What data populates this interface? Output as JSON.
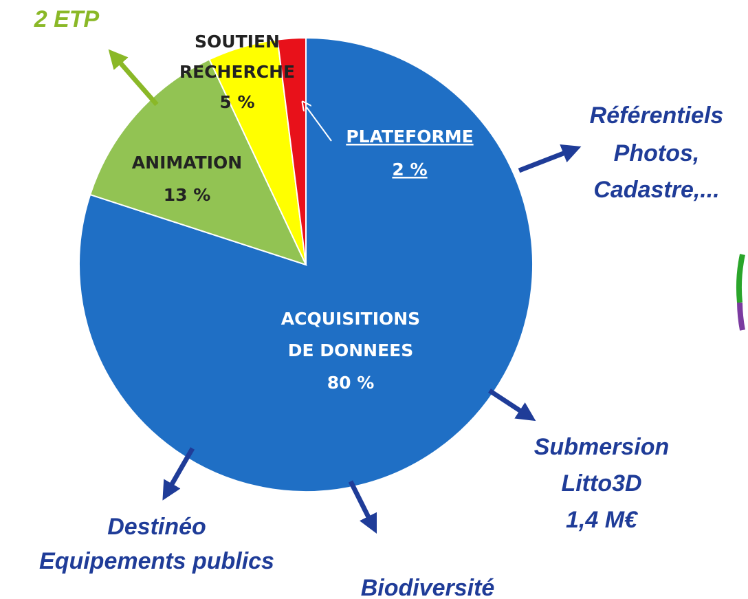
{
  "chart_data": {
    "type": "pie",
    "categories": [
      "ACQUISITIONS\nDE DONNEES",
      "ANIMATION",
      "SOUTIEN\nRECHERCHE",
      "PLATEFORME"
    ],
    "values": [
      80,
      13,
      5,
      2
    ],
    "value_labels": [
      "80 %",
      "13 %",
      "5 %",
      "2 %"
    ],
    "colors": [
      "#1f6fc5",
      "#92c353",
      "#ffff00",
      "#e8111a"
    ],
    "annotations": [
      "2 ETP",
      "Référentiels\nPhotos,\nCadastre,...",
      "Submersion\nLitto3D\n1,4 M€",
      "Destinéo\nEquipements publics",
      "Biodiversité"
    ]
  }
}
